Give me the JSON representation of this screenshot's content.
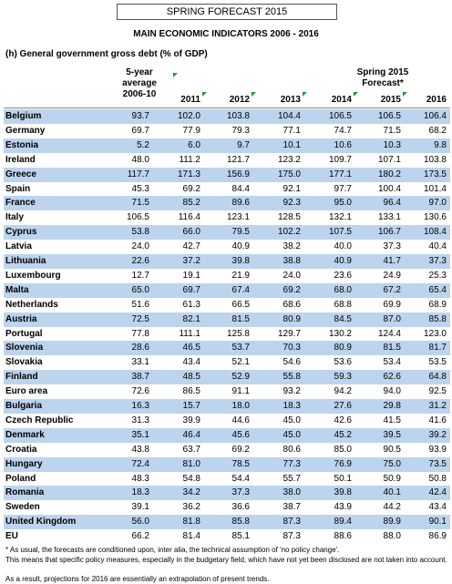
{
  "header": {
    "title": "SPRING FORECAST 2015",
    "main_title": "MAIN ECONOMIC INDICATORS 2006 - 2016",
    "subtitle": "(h)  General government gross debt (% of GDP)"
  },
  "table": {
    "average_header": [
      "5-year",
      "average",
      "2006-10"
    ],
    "forecast_header": [
      "Spring 2015",
      "Forecast*"
    ],
    "columns": [
      "2011",
      "2012",
      "2013",
      "2014",
      "2015",
      "2016"
    ],
    "rows": [
      [
        "Belgium",
        "93.7",
        "102.0",
        "103.8",
        "104.4",
        "106.5",
        "106.5",
        "106.4"
      ],
      [
        "Germany",
        "69.7",
        "77.9",
        "79.3",
        "77.1",
        "74.7",
        "71.5",
        "68.2"
      ],
      [
        "Estonia",
        "5.2",
        "6.0",
        "9.7",
        "10.1",
        "10.6",
        "10.3",
        "9.8"
      ],
      [
        "Ireland",
        "48.0",
        "111.2",
        "121.7",
        "123.2",
        "109.7",
        "107.1",
        "103.8"
      ],
      [
        "Greece",
        "117.7",
        "171.3",
        "156.9",
        "175.0",
        "177.1",
        "180.2",
        "173.5"
      ],
      [
        "Spain",
        "45.3",
        "69.2",
        "84.4",
        "92.1",
        "97.7",
        "100.4",
        "101.4"
      ],
      [
        "France",
        "71.5",
        "85.2",
        "89.6",
        "92.3",
        "95.0",
        "96.4",
        "97.0"
      ],
      [
        "Italy",
        "106.5",
        "116.4",
        "123.1",
        "128.5",
        "132.1",
        "133.1",
        "130.6"
      ],
      [
        "Cyprus",
        "53.8",
        "66.0",
        "79.5",
        "102.2",
        "107.5",
        "106.7",
        "108.4"
      ],
      [
        "Latvia",
        "24.0",
        "42.7",
        "40.9",
        "38.2",
        "40.0",
        "37.3",
        "40.4"
      ],
      [
        "Lithuania",
        "22.6",
        "37.2",
        "39.8",
        "38.8",
        "40.9",
        "41.7",
        "37.3"
      ],
      [
        "Luxembourg",
        "12.7",
        "19.1",
        "21.9",
        "24.0",
        "23.6",
        "24.9",
        "25.3"
      ],
      [
        "Malta",
        "65.0",
        "69.7",
        "67.4",
        "69.2",
        "68.0",
        "67.2",
        "65.4"
      ],
      [
        "Netherlands",
        "51.6",
        "61.3",
        "66.5",
        "68.6",
        "68.8",
        "69.9",
        "68.9"
      ],
      [
        "Austria",
        "72.5",
        "82.1",
        "81.5",
        "80.9",
        "84.5",
        "87.0",
        "85.8"
      ],
      [
        "Portugal",
        "77.8",
        "111.1",
        "125.8",
        "129.7",
        "130.2",
        "124.4",
        "123.0"
      ],
      [
        "Slovenia",
        "28.6",
        "46.5",
        "53.7",
        "70.3",
        "80.9",
        "81.5",
        "81.7"
      ],
      [
        "Slovakia",
        "33.1",
        "43.4",
        "52.1",
        "54.6",
        "53.6",
        "53.4",
        "53.5"
      ],
      [
        "Finland",
        "38.7",
        "48.5",
        "52.9",
        "55.8",
        "59.3",
        "62.6",
        "64.8"
      ],
      [
        "Euro area",
        "72.6",
        "86.5",
        "91.1",
        "93.2",
        "94.2",
        "94.0",
        "92.5"
      ],
      [
        "Bulgaria",
        "16.3",
        "15.7",
        "18.0",
        "18.3",
        "27.6",
        "29.8",
        "31.2"
      ],
      [
        "Czech Republic",
        "31.3",
        "39.9",
        "44.6",
        "45.0",
        "42.6",
        "41.5",
        "41.6"
      ],
      [
        "Denmark",
        "35.1",
        "46.4",
        "45.6",
        "45.0",
        "45.2",
        "39.5",
        "39.2"
      ],
      [
        "Croatia",
        "43.8",
        "63.7",
        "69.2",
        "80.6",
        "85.0",
        "90.5",
        "93.9"
      ],
      [
        "Hungary",
        "72.4",
        "81.0",
        "78.5",
        "77.3",
        "76.9",
        "75.0",
        "73.5"
      ],
      [
        "Poland",
        "48.3",
        "54.8",
        "54.4",
        "55.7",
        "50.1",
        "50.9",
        "50.8"
      ],
      [
        "Romania",
        "18.3",
        "34.2",
        "37.3",
        "38.0",
        "39.8",
        "40.1",
        "42.4"
      ],
      [
        "Sweden",
        "39.1",
        "36.2",
        "36.6",
        "38.7",
        "43.9",
        "44.2",
        "43.4"
      ],
      [
        "United Kingdom",
        "56.0",
        "81.8",
        "85.8",
        "87.3",
        "89.4",
        "89.9",
        "90.1"
      ],
      [
        "EU",
        "66.2",
        "81.4",
        "85.1",
        "87.3",
        "88.6",
        "88.0",
        "86.9"
      ]
    ]
  },
  "footnotes": [
    "* As usual, the forecasts are conditioned upon, inter alia, the technical assumption of 'no policy change'.",
    "This means that specific policy measures, especially in the budgetary field, which have not yet been disclosed are not taken into account.",
    "As a result, projections for 2016 are essentially an extrapolation of present trends."
  ]
}
